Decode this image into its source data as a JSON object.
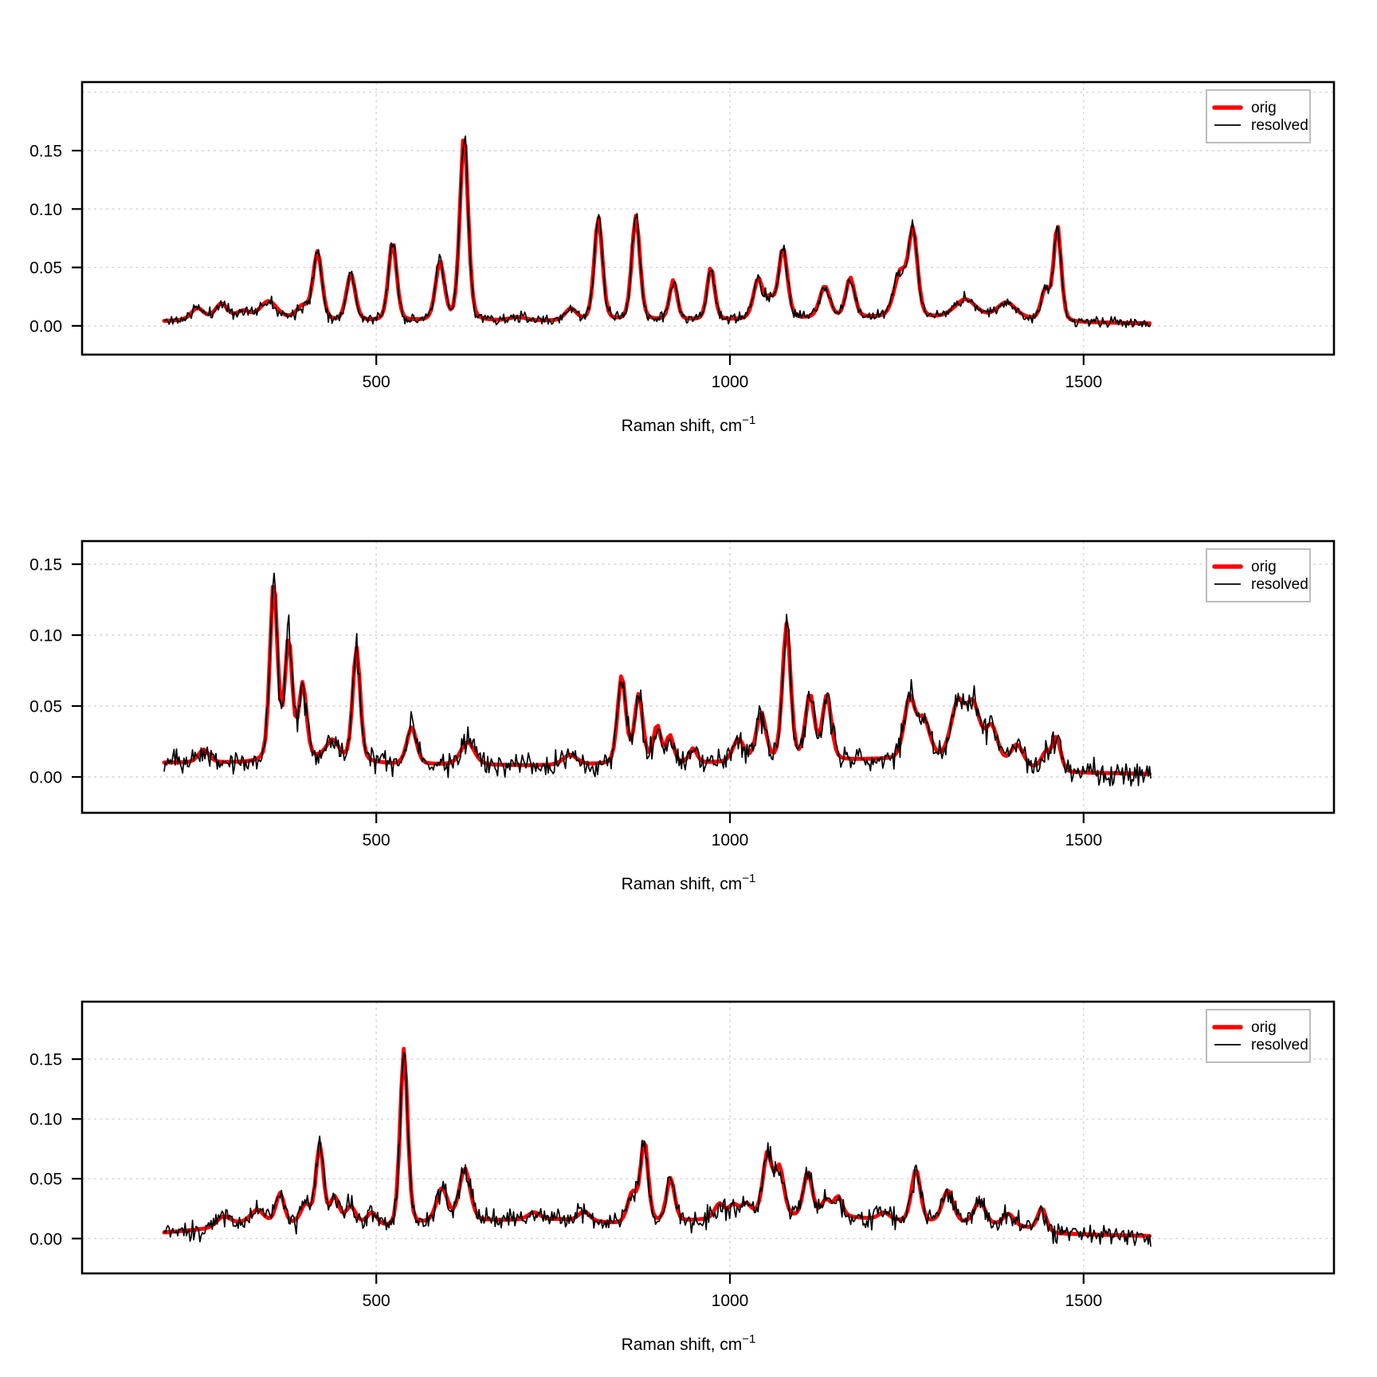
{
  "figure": {
    "background": "#ffffff",
    "grid_color": "#d4d4d4",
    "frame_color": "#000000"
  },
  "chart_data": [
    {
      "type": "line",
      "title": "",
      "xlabel": "Raman shift, cm",
      "xlabel_sup": "−1",
      "ylabel": "",
      "legend_position": "top-right",
      "series": [
        {
          "name": "orig",
          "color": "#FF0000",
          "lw": 5
        },
        {
          "name": "resolved",
          "color": "#000000",
          "lw": 1.7
        }
      ],
      "xticks": [
        {
          "v": 500,
          "label": "500"
        },
        {
          "v": 1000,
          "label": "1000"
        },
        {
          "v": 1500,
          "label": "1500"
        }
      ],
      "yticks": [
        {
          "v": 0,
          "label": "0.00"
        },
        {
          "v": 0.05,
          "label": "0.05"
        },
        {
          "v": 0.1,
          "label": "0.10"
        },
        {
          "v": 0.15,
          "label": "0.15"
        }
      ],
      "xgrid": [
        500,
        1000,
        1500
      ],
      "ygrid": [
        0,
        0.05,
        0.1,
        0.15,
        0.2
      ],
      "xlim": [
        84,
        1854
      ],
      "ylim": [
        -0.0246,
        0.2087
      ],
      "x_range": [
        200,
        1595
      ],
      "n_points": 800,
      "noise": {
        "seed": 11,
        "base": 0.0048,
        "scale": 0.05
      },
      "baseline": [
        [
          200,
          0.004
        ],
        [
          340,
          0.007
        ],
        [
          430,
          0.004
        ],
        [
          700,
          0.004
        ],
        [
          1000,
          0.005
        ],
        [
          1200,
          0.007
        ],
        [
          1360,
          0.006
        ],
        [
          1430,
          0.005
        ],
        [
          1470,
          0.003
        ],
        [
          1600,
          0.002
        ]
      ],
      "peaks": [
        [
          247,
          0.01,
          9
        ],
        [
          281,
          0.013,
          9
        ],
        [
          312,
          0.006,
          9
        ],
        [
          348,
          0.014,
          12
        ],
        [
          396,
          0.011,
          9
        ],
        [
          417,
          0.058,
          6.5
        ],
        [
          464,
          0.04,
          6.5
        ],
        [
          523,
          0.068,
          6
        ],
        [
          590,
          0.05,
          6.5
        ],
        [
          624,
          0.16,
          6
        ],
        [
          700,
          0.003,
          12
        ],
        [
          775,
          0.01,
          8
        ],
        [
          814,
          0.088,
          6
        ],
        [
          867,
          0.089,
          6
        ],
        [
          920,
          0.034,
          5.5
        ],
        [
          973,
          0.045,
          5.5
        ],
        [
          1040,
          0.034,
          7
        ],
        [
          1057,
          0.015,
          6
        ],
        [
          1075,
          0.06,
          6.5
        ],
        [
          1134,
          0.027,
          7.5
        ],
        [
          1170,
          0.034,
          6.5
        ],
        [
          1241,
          0.038,
          9
        ],
        [
          1259,
          0.072,
          6.5
        ],
        [
          1333,
          0.016,
          16
        ],
        [
          1391,
          0.014,
          14
        ],
        [
          1446,
          0.026,
          6
        ],
        [
          1463,
          0.082,
          5.5
        ]
      ]
    },
    {
      "type": "line",
      "title": "",
      "xlabel": "Raman shift, cm",
      "xlabel_sup": "−1",
      "ylabel": "",
      "legend_position": "top-right",
      "series": [
        {
          "name": "orig",
          "color": "#FF0000",
          "lw": 5
        },
        {
          "name": "resolved",
          "color": "#000000",
          "lw": 1.7
        }
      ],
      "xticks": [
        {
          "v": 500,
          "label": "500"
        },
        {
          "v": 1000,
          "label": "1000"
        },
        {
          "v": 1500,
          "label": "1500"
        }
      ],
      "yticks": [
        {
          "v": 0,
          "label": "0.00"
        },
        {
          "v": 0.05,
          "label": "0.05"
        },
        {
          "v": 0.1,
          "label": "0.10"
        },
        {
          "v": 0.15,
          "label": "0.15"
        }
      ],
      "xgrid": [
        500,
        1000,
        1500
      ],
      "ygrid": [
        0,
        0.05,
        0.1,
        0.15
      ],
      "xlim": [
        84,
        1854
      ],
      "ylim": [
        -0.0253,
        0.1663
      ],
      "x_range": [
        200,
        1595
      ],
      "n_points": 800,
      "noise": {
        "seed": 23,
        "base": 0.0085,
        "scale": 0.05
      },
      "baseline": [
        [
          200,
          0.01
        ],
        [
          320,
          0.01
        ],
        [
          420,
          0.013
        ],
        [
          520,
          0.009
        ],
        [
          720,
          0.008
        ],
        [
          1000,
          0.01
        ],
        [
          1200,
          0.012
        ],
        [
          1320,
          0.012
        ],
        [
          1420,
          0.006
        ],
        [
          1470,
          0.003
        ],
        [
          1600,
          0.002
        ]
      ],
      "peaks": [
        [
          256,
          0.009,
          8
        ],
        [
          355,
          0.126,
          5.5
        ],
        [
          376,
          0.084,
          5.5
        ],
        [
          396,
          0.052,
          5.5
        ],
        [
          438,
          0.013,
          9
        ],
        [
          472,
          0.08,
          5.5
        ],
        [
          550,
          0.026,
          7
        ],
        [
          629,
          0.016,
          10
        ],
        [
          774,
          0.007,
          10
        ],
        [
          847,
          0.062,
          6
        ],
        [
          871,
          0.048,
          6
        ],
        [
          897,
          0.026,
          5.5
        ],
        [
          915,
          0.019,
          5.5
        ],
        [
          948,
          0.01,
          5.5
        ],
        [
          1012,
          0.016,
          8
        ],
        [
          1044,
          0.034,
          7
        ],
        [
          1080,
          0.096,
          6
        ],
        [
          1113,
          0.046,
          6.5
        ],
        [
          1137,
          0.045,
          6.5
        ],
        [
          1254,
          0.042,
          8
        ],
        [
          1274,
          0.027,
          9
        ],
        [
          1322,
          0.038,
          10
        ],
        [
          1344,
          0.038,
          10
        ],
        [
          1370,
          0.025,
          9
        ],
        [
          1406,
          0.015,
          9
        ],
        [
          1447,
          0.012,
          7
        ],
        [
          1462,
          0.023,
          6
        ]
      ]
    },
    {
      "type": "line",
      "title": "",
      "xlabel": "Raman shift, cm",
      "xlabel_sup": "−1",
      "ylabel": "",
      "legend_position": "top-right",
      "series": [
        {
          "name": "orig",
          "color": "#FF0000",
          "lw": 5
        },
        {
          "name": "resolved",
          "color": "#000000",
          "lw": 1.7
        }
      ],
      "xticks": [
        {
          "v": 500,
          "label": "500"
        },
        {
          "v": 1000,
          "label": "1000"
        },
        {
          "v": 1500,
          "label": "1500"
        }
      ],
      "yticks": [
        {
          "v": 0,
          "label": "0.00"
        },
        {
          "v": 0.05,
          "label": "0.05"
        },
        {
          "v": 0.1,
          "label": "0.10"
        },
        {
          "v": 0.15,
          "label": "0.15"
        }
      ],
      "xgrid": [
        500,
        1000,
        1500
      ],
      "ygrid": [
        0,
        0.05,
        0.1,
        0.15
      ],
      "xlim": [
        84,
        1854
      ],
      "ylim": [
        -0.0291,
        0.198
      ],
      "x_range": [
        200,
        1595
      ],
      "n_points": 800,
      "noise": {
        "seed": 37,
        "base": 0.0085,
        "scale": 0.05
      },
      "baseline": [
        [
          200,
          0.005
        ],
        [
          260,
          0.008
        ],
        [
          320,
          0.014
        ],
        [
          380,
          0.012
        ],
        [
          450,
          0.014
        ],
        [
          520,
          0.009
        ],
        [
          580,
          0.013
        ],
        [
          660,
          0.015
        ],
        [
          760,
          0.016
        ],
        [
          850,
          0.012
        ],
        [
          950,
          0.015
        ],
        [
          1040,
          0.019
        ],
        [
          1100,
          0.017
        ],
        [
          1160,
          0.018
        ],
        [
          1250,
          0.014
        ],
        [
          1360,
          0.012
        ],
        [
          1420,
          0.009
        ],
        [
          1465,
          0.004
        ],
        [
          1600,
          0.002
        ]
      ],
      "peaks": [
        [
          284,
          0.008,
          10
        ],
        [
          332,
          0.01,
          9
        ],
        [
          364,
          0.025,
          6
        ],
        [
          400,
          0.015,
          7
        ],
        [
          420,
          0.065,
          5.5
        ],
        [
          441,
          0.02,
          6
        ],
        [
          464,
          0.013,
          7
        ],
        [
          494,
          0.01,
          7
        ],
        [
          539,
          0.148,
          5.5
        ],
        [
          593,
          0.028,
          8
        ],
        [
          625,
          0.044,
          8
        ],
        [
          723,
          0.006,
          9
        ],
        [
          794,
          0.008,
          8
        ],
        [
          862,
          0.025,
          7
        ],
        [
          879,
          0.068,
          5.5
        ],
        [
          916,
          0.036,
          6
        ],
        [
          985,
          0.012,
          7
        ],
        [
          1005,
          0.01,
          7
        ],
        [
          1023,
          0.01,
          7
        ],
        [
          1053,
          0.052,
          6.5
        ],
        [
          1070,
          0.04,
          6.5
        ],
        [
          1110,
          0.038,
          6.5
        ],
        [
          1136,
          0.014,
          7
        ],
        [
          1153,
          0.016,
          6
        ],
        [
          1218,
          0.006,
          8
        ],
        [
          1263,
          0.044,
          6.5
        ],
        [
          1308,
          0.027,
          8
        ],
        [
          1353,
          0.019,
          8
        ],
        [
          1394,
          0.01,
          8
        ],
        [
          1441,
          0.019,
          6
        ]
      ]
    }
  ]
}
